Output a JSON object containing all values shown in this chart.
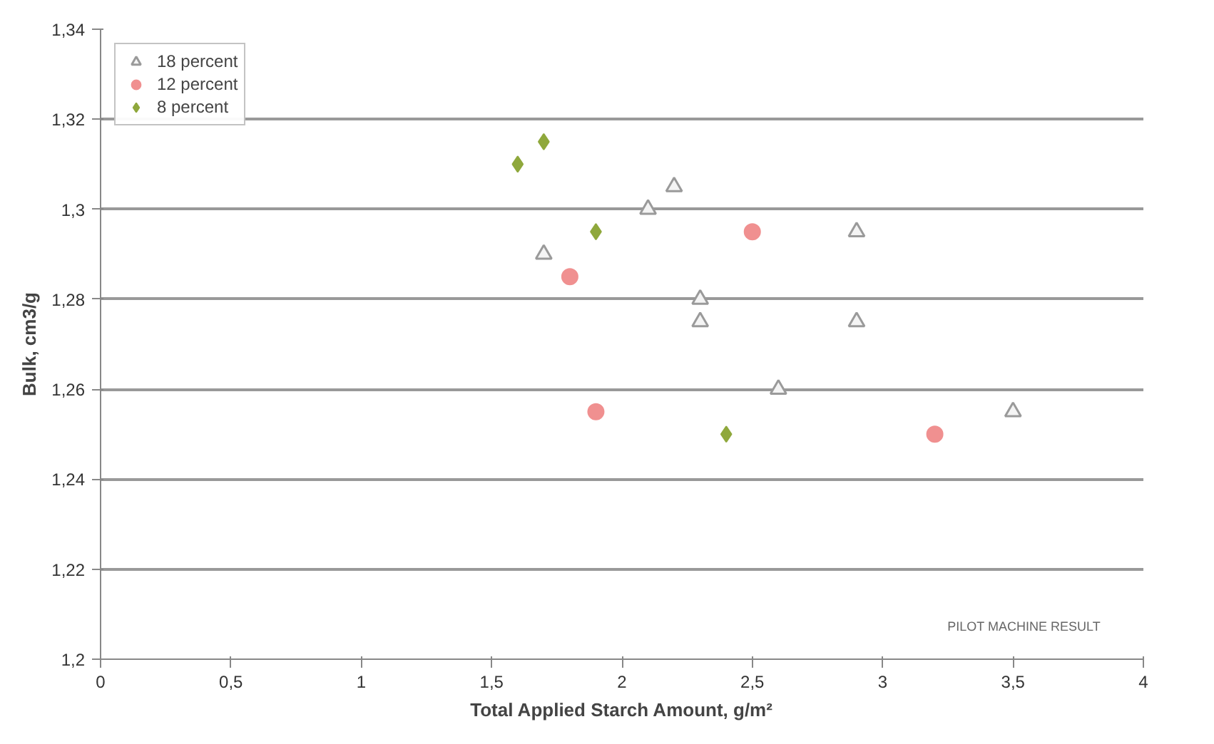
{
  "chart_data": {
    "type": "scatter",
    "xlabel": "Total Applied Starch Amount, g/m²",
    "ylabel": "Bulk, cm3/g",
    "annotations": [
      "PILOT MACHINE RESULT"
    ],
    "xlim": [
      0,
      4
    ],
    "ylim": [
      1.2,
      1.34
    ],
    "xticks": [
      0,
      {
        "value": 0.5,
        "label": "0,5"
      },
      1,
      {
        "value": 1.5,
        "label": "1,5"
      },
      2,
      {
        "value": 2.5,
        "label": "2,5"
      },
      3,
      {
        "value": 3.5,
        "label": "3,5"
      },
      4
    ],
    "yticks": [
      {
        "value": 1.2,
        "label": "1,2"
      },
      {
        "value": 1.22,
        "label": "1,22"
      },
      {
        "value": 1.24,
        "label": "1,24"
      },
      {
        "value": 1.26,
        "label": "1,26"
      },
      {
        "value": 1.28,
        "label": "1,28"
      },
      {
        "value": 1.3,
        "label": "1,3"
      },
      {
        "value": 1.32,
        "label": "1,32"
      },
      {
        "value": 1.34,
        "label": "1,34"
      }
    ],
    "grid": "y",
    "legend": "top left",
    "series": [
      {
        "name": "18 percent",
        "color": "#9a9a9a",
        "marker": "triangle",
        "x": [
          1.7,
          2.1,
          2.2,
          2.3,
          2.3,
          2.6,
          2.9,
          2.9,
          3.5
        ],
        "values": [
          1.29,
          1.3,
          1.305,
          1.28,
          1.275,
          1.26,
          1.295,
          1.275,
          1.255
        ]
      },
      {
        "name": "12 percent",
        "color": "#f09090",
        "marker": "circle",
        "x": [
          1.8,
          1.9,
          2.5,
          3.2
        ],
        "values": [
          1.285,
          1.255,
          1.295,
          1.25
        ]
      },
      {
        "name": "8 percent",
        "color": "#8fa83c",
        "marker": "diamond",
        "x": [
          1.6,
          1.7,
          1.9,
          2.4
        ],
        "values": [
          1.31,
          1.315,
          1.295,
          1.25
        ]
      }
    ]
  }
}
